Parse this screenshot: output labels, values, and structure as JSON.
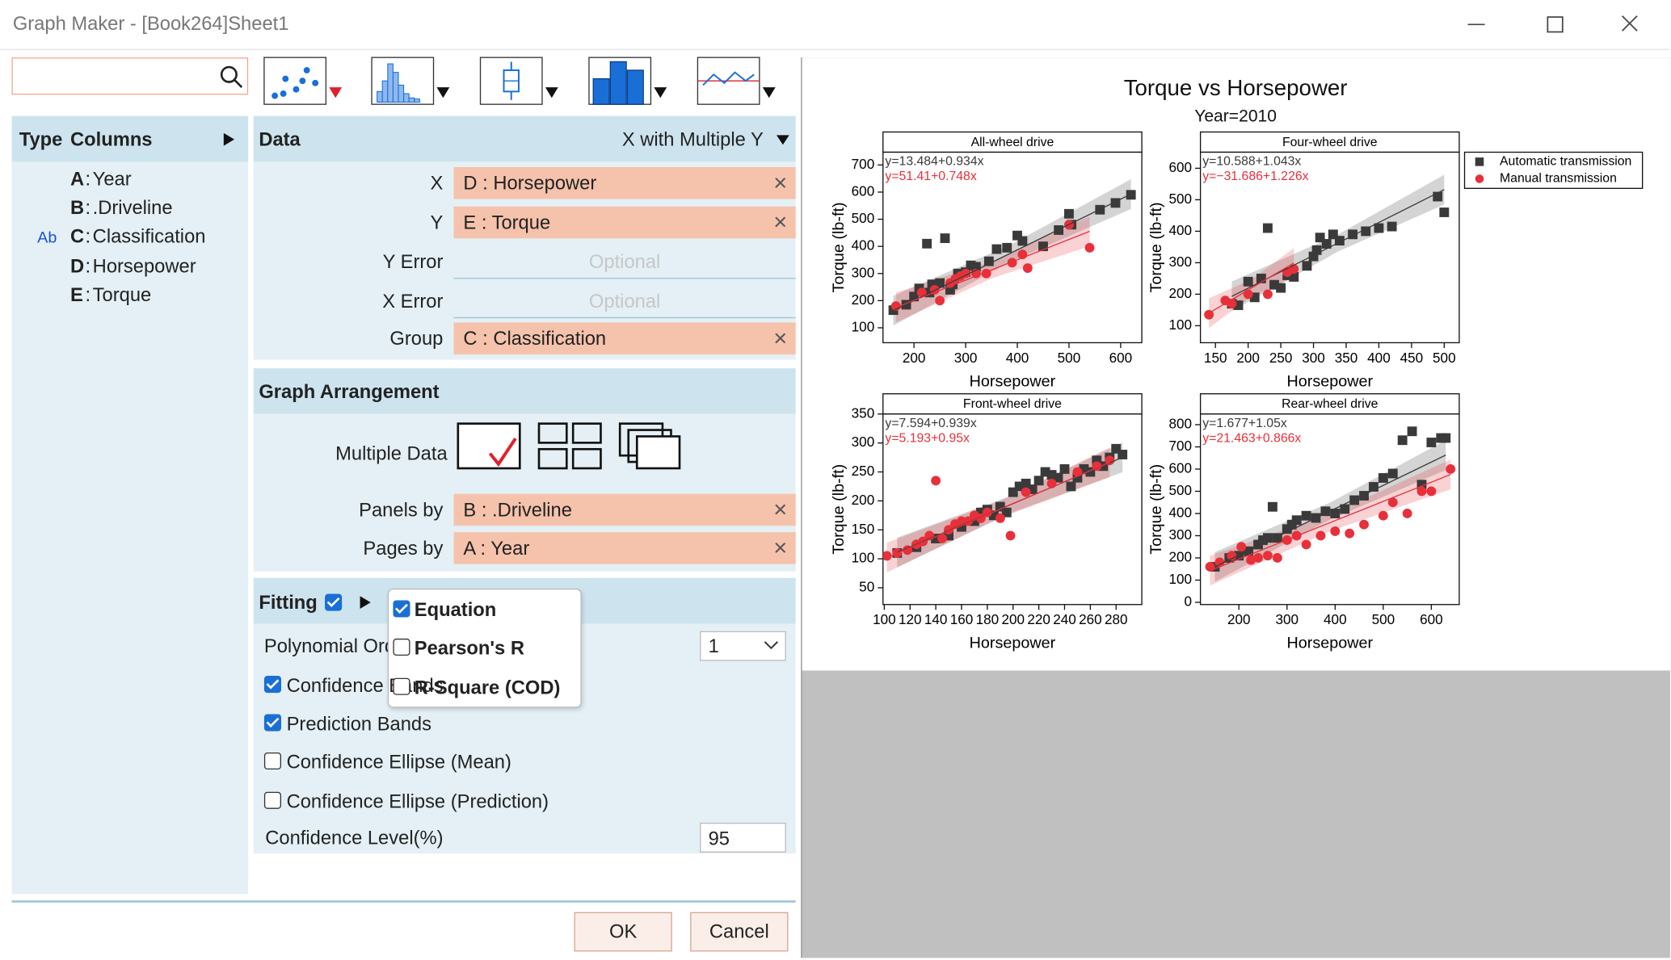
{
  "window": {
    "title": "Graph Maker - [Book264]Sheet1"
  },
  "columns_panel": {
    "header_type": "Type",
    "header_columns": "Columns",
    "columns": [
      {
        "letter": "A",
        "separator": ":",
        "name": "Year"
      },
      {
        "letter": "B",
        "separator": ":",
        "name": ".Driveline"
      },
      {
        "type": "Ab",
        "letter": "C",
        "separator": ":",
        "name": "Classification"
      },
      {
        "letter": "D",
        "separator": ":",
        "name": "Horsepower"
      },
      {
        "letter": "E",
        "separator": ":",
        "name": "Torque"
      }
    ]
  },
  "data_section": {
    "title": "Data",
    "mode": "X with Multiple Y",
    "fields": [
      {
        "label": "X",
        "value": "D : Horsepower"
      },
      {
        "label": "Y",
        "value": "E : Torque"
      },
      {
        "label": "Y Error",
        "placeholder": "Optional"
      },
      {
        "label": "X Error",
        "placeholder": "Optional"
      },
      {
        "label": "Group",
        "value": "C : Classification"
      }
    ]
  },
  "arrangement": {
    "title": "Graph Arrangement",
    "multiple_data_label": "Multiple Data",
    "fields": [
      {
        "label": "Panels by",
        "value": "B : .Driveline"
      },
      {
        "label": "Pages by",
        "value": "A : Year"
      }
    ]
  },
  "fitting": {
    "title": "Fitting",
    "enabled": true,
    "polynomial_order_label": "Polynomial Order",
    "polynomial_order": 1,
    "options": [
      {
        "label": "Confidence Bands",
        "checked": true
      },
      {
        "label": "Prediction Bands",
        "checked": true
      },
      {
        "label": "Confidence Ellipse (Mean)",
        "checked": false
      },
      {
        "label": "Confidence Ellipse (Prediction)",
        "checked": false
      }
    ],
    "confidence_level_label": "Confidence Level(%)",
    "confidence_level": 95
  },
  "popup": [
    {
      "label": "Equation",
      "checked": true
    },
    {
      "label": "Pearson's R",
      "checked": false
    },
    {
      "label": "R-Square (COD)",
      "checked": false
    }
  ],
  "buttons": {
    "ok": "OK",
    "cancel": "Cancel"
  },
  "graph": {
    "title": "Torque vs Horsepower",
    "subtitle": "Year=2010"
  },
  "chart_data": [
    {
      "type": "scatter",
      "title": "All-wheel drive",
      "x_label": "Horsepower",
      "y_label": "Torque (lb-ft)",
      "xlim": [
        140,
        641
      ],
      "ylim": [
        45,
        747
      ],
      "xticks": [
        200,
        300,
        400,
        500,
        600
      ],
      "yticks": [
        100,
        200,
        300,
        400,
        500,
        600,
        700
      ],
      "series": [
        {
          "name": "Automatic transmission",
          "color": "#3a3a3a",
          "marker": "square",
          "x": [
            160,
            185,
            200,
            210,
            225,
            235,
            250,
            260,
            275,
            285,
            300,
            310,
            320,
            345,
            360,
            380,
            400,
            410,
            450,
            480,
            500,
            560,
            590,
            620,
            505,
            270,
            230
          ],
          "y": [
            165,
            185,
            215,
            245,
            410,
            260,
            265,
            430,
            260,
            300,
            305,
            330,
            325,
            345,
            390,
            395,
            440,
            420,
            400,
            460,
            520,
            535,
            560,
            590,
            480,
            240,
            230
          ],
          "fit": {
            "intercept": 13.484,
            "slope": 0.934,
            "label": "y=13.484+0.934x"
          }
        },
        {
          "name": "Manual transmission",
          "color": "#e8303a",
          "marker": "circle",
          "x": [
            165,
            215,
            240,
            270,
            290,
            300,
            320,
            340,
            390,
            420,
            410,
            500,
            540,
            280,
            250
          ],
          "y": [
            180,
            230,
            240,
            265,
            290,
            300,
            300,
            300,
            340,
            320,
            370,
            480,
            395,
            280,
            200
          ],
          "fit": {
            "intercept": 51.41,
            "slope": 0.748,
            "label": "y=51.41+0.748x"
          }
        }
      ]
    },
    {
      "type": "scatter",
      "title": "Four-wheel drive",
      "x_label": "Horsepower",
      "y_label": "Torque (lb-ft)",
      "xlim": [
        127,
        523
      ],
      "ylim": [
        46,
        651
      ],
      "xticks": [
        150,
        200,
        250,
        300,
        350,
        400,
        450,
        500
      ],
      "yticks": [
        100,
        200,
        300,
        400,
        500,
        600
      ],
      "series": [
        {
          "color": "#3a3a3a",
          "marker": "square",
          "x": [
            175,
            185,
            200,
            210,
            220,
            230,
            240,
            250,
            260,
            270,
            290,
            300,
            305,
            310,
            320,
            330,
            340,
            360,
            380,
            400,
            420,
            490,
            500
          ],
          "y": [
            170,
            165,
            240,
            190,
            250,
            410,
            230,
            220,
            260,
            255,
            290,
            320,
            340,
            380,
            360,
            390,
            370,
            390,
            400,
            410,
            415,
            510,
            460
          ],
          "fit": {
            "intercept": 10.588,
            "slope": 1.043,
            "label": "y=10.588+1.043x"
          }
        },
        {
          "color": "#e8303a",
          "marker": "circle",
          "x": [
            140,
            165,
            175,
            200,
            230,
            260,
            270
          ],
          "y": [
            135,
            180,
            170,
            200,
            200,
            270,
            280
          ],
          "fit": {
            "intercept": -31.686,
            "slope": 1.226,
            "label": "y=−31.686+1.226x"
          }
        }
      ]
    },
    {
      "type": "scatter",
      "title": "Front-wheel drive",
      "x_label": "Horsepower",
      "y_label": "Torque (lb-ft)",
      "xlim": [
        99,
        300
      ],
      "ylim": [
        21,
        350
      ],
      "xticks": [
        100,
        120,
        140,
        160,
        180,
        200,
        220,
        240,
        260,
        280
      ],
      "yticks": [
        50,
        100,
        150,
        200,
        250,
        300,
        350
      ],
      "series": [
        {
          "color": "#3a3a3a",
          "marker": "square",
          "x": [
            110,
            125,
            140,
            150,
            160,
            170,
            175,
            180,
            185,
            190,
            195,
            200,
            205,
            210,
            215,
            220,
            225,
            230,
            235,
            240,
            245,
            250,
            255,
            260,
            265,
            270,
            275,
            280,
            285
          ],
          "y": [
            110,
            120,
            135,
            140,
            155,
            165,
            180,
            185,
            175,
            190,
            180,
            215,
            225,
            230,
            220,
            235,
            250,
            245,
            240,
            255,
            225,
            240,
            255,
            250,
            270,
            260,
            275,
            290,
            280
          ],
          "fit": {
            "intercept": 7.594,
            "slope": 0.939,
            "label": "y=7.594+0.939x"
          }
        },
        {
          "color": "#e8303a",
          "marker": "circle",
          "x": [
            102,
            110,
            118,
            125,
            130,
            135,
            140,
            145,
            150,
            155,
            160,
            165,
            170,
            175,
            180,
            190,
            198,
            210,
            230,
            250,
            265,
            275
          ],
          "y": [
            105,
            110,
            115,
            125,
            130,
            140,
            235,
            135,
            150,
            160,
            165,
            165,
            175,
            170,
            180,
            170,
            140,
            215,
            230,
            250,
            260,
            270
          ],
          "fit": {
            "intercept": 5.193,
            "slope": 0.95,
            "label": "y=5.193+0.95x"
          }
        }
      ]
    },
    {
      "type": "scatter",
      "title": "Rear-wheel drive",
      "x_label": "Horsepower",
      "y_label": "Torque (lb-ft)",
      "xlim": [
        120,
        658
      ],
      "ylim": [
        -10,
        848
      ],
      "xticks": [
        200,
        300,
        400,
        500,
        600
      ],
      "yticks": [
        0,
        100,
        200,
        300,
        400,
        500,
        600,
        700,
        800
      ],
      "series": [
        {
          "color": "#3a3a3a",
          "marker": "square",
          "x": [
            150,
            180,
            200,
            220,
            240,
            250,
            260,
            270,
            280,
            300,
            310,
            320,
            340,
            360,
            380,
            400,
            420,
            440,
            460,
            480,
            500,
            520,
            540,
            560,
            580,
            600,
            620,
            630
          ],
          "y": [
            160,
            200,
            210,
            230,
            260,
            280,
            290,
            430,
            290,
            330,
            350,
            370,
            390,
            380,
            410,
            400,
            420,
            460,
            480,
            520,
            560,
            580,
            730,
            770,
            530,
            720,
            740,
            740
          ],
          "fit": {
            "intercept": 1.677,
            "slope": 1.05,
            "label": "y=1.677+1.05x"
          }
        },
        {
          "color": "#e8303a",
          "marker": "circle",
          "x": [
            140,
            160,
            185,
            205,
            225,
            240,
            260,
            280,
            300,
            320,
            340,
            370,
            400,
            430,
            460,
            500,
            520,
            550,
            580,
            600,
            640
          ],
          "y": [
            160,
            180,
            210,
            250,
            190,
            200,
            210,
            200,
            280,
            300,
            260,
            300,
            320,
            310,
            350,
            390,
            450,
            400,
            500,
            500,
            600
          ],
          "fit": {
            "intercept": 21.463,
            "slope": 0.866,
            "label": "y=21.463+0.866x"
          }
        }
      ]
    }
  ]
}
